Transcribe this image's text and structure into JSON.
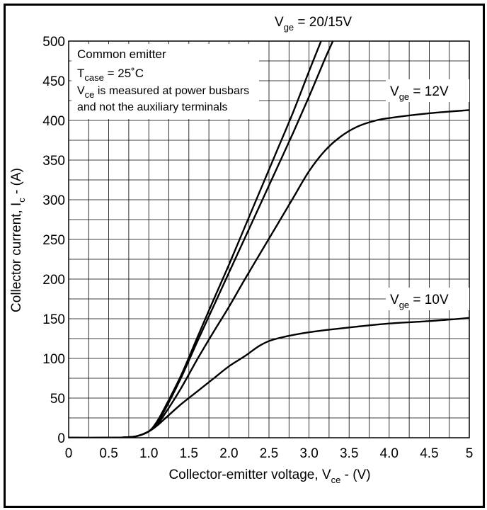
{
  "chart_data": {
    "type": "line",
    "xlabel": {
      "main": "Collector-emitter voltage, V",
      "sub": "ce",
      "tail": " - (V)"
    },
    "ylabel": {
      "main": "Collector current, I",
      "sub": "c",
      "tail": " - (A)"
    },
    "xlim": [
      0,
      5
    ],
    "ylim": [
      0,
      500
    ],
    "grid": true,
    "x_ticks": [
      "0",
      "0.5",
      "1.0",
      "1.5",
      "2.0",
      "2.5",
      "3.0",
      "3.5",
      "4.0",
      "4.5",
      "5"
    ],
    "y_ticks": [
      "0",
      "50",
      "100",
      "150",
      "200",
      "250",
      "300",
      "350",
      "400",
      "450",
      "500"
    ],
    "notes": {
      "line1": "Common emitter",
      "line2": {
        "main": "T",
        "sub": "case",
        "tail": " = 25˚C"
      },
      "line3": {
        "main": "V",
        "sub": "ce",
        "tail": " is measured at power busbars"
      },
      "line4": "and not the auxiliary terminals"
    },
    "labels": {
      "vge20": {
        "main": "V",
        "sub": "ge",
        "tail": " = 20/15V"
      },
      "vge12": {
        "main": "V",
        "sub": "ge",
        "tail": " = 12V"
      },
      "vge10": {
        "main": "V",
        "sub": "ge",
        "tail": " = 10V"
      }
    },
    "series": [
      {
        "points": [
          [
            0,
            0
          ],
          [
            0.5,
            0
          ],
          [
            0.7,
            0.5
          ],
          [
            0.85,
            2
          ],
          [
            1.0,
            8
          ],
          [
            1.1,
            20
          ],
          [
            1.2,
            38
          ],
          [
            1.4,
            78
          ],
          [
            1.6,
            125
          ],
          [
            1.8,
            172
          ],
          [
            2.0,
            218
          ],
          [
            2.2,
            266
          ],
          [
            2.4,
            314
          ],
          [
            2.6,
            362
          ],
          [
            2.8,
            410
          ],
          [
            3.0,
            462
          ],
          [
            3.17,
            505
          ]
        ]
      },
      {
        "points": [
          [
            0,
            0
          ],
          [
            0.5,
            0
          ],
          [
            0.7,
            0.5
          ],
          [
            0.85,
            2
          ],
          [
            1.0,
            8
          ],
          [
            1.1,
            18
          ],
          [
            1.2,
            35
          ],
          [
            1.4,
            75
          ],
          [
            1.6,
            120
          ],
          [
            1.8,
            164
          ],
          [
            2.0,
            208
          ],
          [
            2.2,
            252
          ],
          [
            2.4,
            296
          ],
          [
            2.6,
            340
          ],
          [
            2.8,
            384
          ],
          [
            3.0,
            430
          ],
          [
            3.2,
            478
          ],
          [
            3.32,
            505
          ]
        ]
      },
      {
        "points": [
          [
            0,
            0
          ],
          [
            0.5,
            0
          ],
          [
            0.7,
            0.5
          ],
          [
            0.85,
            2
          ],
          [
            1.0,
            8
          ],
          [
            1.1,
            16
          ],
          [
            1.2,
            30
          ],
          [
            1.4,
            62
          ],
          [
            1.6,
            98
          ],
          [
            1.8,
            132
          ],
          [
            2.0,
            165
          ],
          [
            2.2,
            200
          ],
          [
            2.4,
            234
          ],
          [
            2.6,
            268
          ],
          [
            2.8,
            302
          ],
          [
            3.0,
            336
          ],
          [
            3.2,
            362
          ],
          [
            3.4,
            380
          ],
          [
            3.6,
            392
          ],
          [
            3.8,
            399
          ],
          [
            4.0,
            403
          ],
          [
            4.5,
            409
          ],
          [
            5.0,
            413
          ]
        ]
      },
      {
        "points": [
          [
            0,
            0
          ],
          [
            0.5,
            0
          ],
          [
            0.7,
            0.5
          ],
          [
            0.85,
            2
          ],
          [
            1.0,
            8
          ],
          [
            1.1,
            15
          ],
          [
            1.2,
            24
          ],
          [
            1.4,
            42
          ],
          [
            1.6,
            58
          ],
          [
            1.8,
            74
          ],
          [
            2.0,
            90
          ],
          [
            2.2,
            103
          ],
          [
            2.4,
            117
          ],
          [
            2.6,
            125
          ],
          [
            3.0,
            133
          ],
          [
            3.5,
            139
          ],
          [
            4.0,
            144
          ],
          [
            4.5,
            147
          ],
          [
            5.0,
            151
          ]
        ]
      }
    ]
  }
}
